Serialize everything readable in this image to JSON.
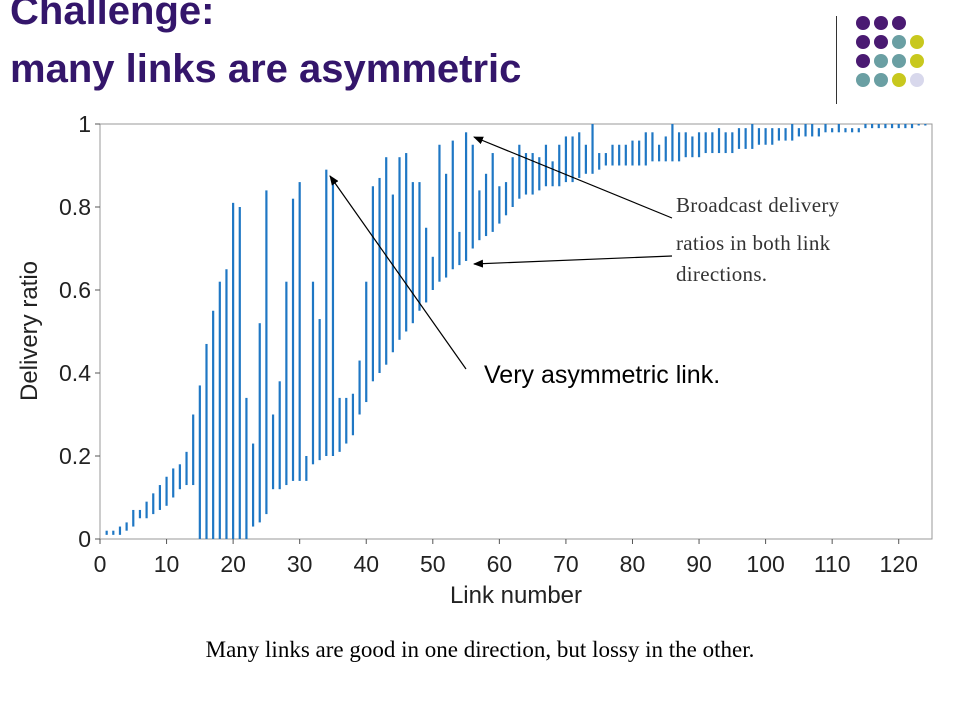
{
  "slide": {
    "title_line1": "Challenge:",
    "title_line2": "many links are asymmetric",
    "annotation": [
      "Broadcast delivery",
      "ratios in both link",
      "directions."
    ],
    "asym_label": "Very asymmetric link.",
    "caption": "Many links are good in one direction, but lossy in the other.",
    "colors": {
      "title": "#34166b",
      "bar": "#1f77c4",
      "dot_purple": "#4a1a72",
      "dot_teal": "#6a9fa3",
      "dot_yellow": "#c8c81e",
      "dot_lavender": "#d8d8ec"
    },
    "decor_dots": [
      [
        "purple",
        "purple",
        "purple",
        ""
      ],
      [
        "purple",
        "purple",
        "teal",
        "yellow"
      ],
      [
        "purple",
        "teal",
        "teal",
        "yellow"
      ],
      [
        "teal",
        "teal",
        "yellow",
        "lavender"
      ]
    ]
  },
  "chart_data": {
    "type": "range-bar",
    "title": "",
    "xlabel": "Link number",
    "ylabel": "Delivery ratio",
    "xlim": [
      0,
      125
    ],
    "ylim": [
      0,
      1
    ],
    "xticks": [
      0,
      10,
      20,
      30,
      40,
      50,
      60,
      70,
      80,
      90,
      100,
      110,
      120
    ],
    "yticks": [
      0,
      0.2,
      0.4,
      0.6,
      0.8,
      1
    ],
    "ytick_labels": [
      "0",
      "0.2",
      "0.4",
      "0.6",
      "0.8",
      "1"
    ],
    "grid": false,
    "links": [
      1,
      2,
      3,
      4,
      5,
      6,
      7,
      8,
      9,
      10,
      11,
      12,
      13,
      14,
      15,
      16,
      17,
      18,
      19,
      20,
      21,
      22,
      23,
      24,
      25,
      26,
      27,
      28,
      29,
      30,
      31,
      32,
      33,
      34,
      35,
      36,
      37,
      38,
      39,
      40,
      41,
      42,
      43,
      44,
      45,
      46,
      47,
      48,
      49,
      50,
      51,
      52,
      53,
      54,
      55,
      56,
      57,
      58,
      59,
      60,
      61,
      62,
      63,
      64,
      65,
      66,
      67,
      68,
      69,
      70,
      71,
      72,
      73,
      74,
      75,
      76,
      77,
      78,
      79,
      80,
      81,
      82,
      83,
      84,
      85,
      86,
      87,
      88,
      89,
      90,
      91,
      92,
      93,
      94,
      95,
      96,
      97,
      98,
      99,
      100,
      101,
      102,
      103,
      104,
      105,
      106,
      107,
      108,
      109,
      110,
      111,
      112,
      113,
      114,
      115,
      116,
      117,
      118,
      119,
      120,
      121,
      122,
      123,
      124
    ],
    "low": [
      0.01,
      0.01,
      0.01,
      0.02,
      0.03,
      0.05,
      0.05,
      0.06,
      0.07,
      0.08,
      0.1,
      0.12,
      0.13,
      0.13,
      0.0,
      0.0,
      0.0,
      0.0,
      0.0,
      0.0,
      0.0,
      0.0,
      0.03,
      0.04,
      0.06,
      0.12,
      0.12,
      0.13,
      0.14,
      0.14,
      0.14,
      0.18,
      0.19,
      0.2,
      0.2,
      0.21,
      0.23,
      0.25,
      0.3,
      0.33,
      0.38,
      0.4,
      0.42,
      0.45,
      0.48,
      0.5,
      0.52,
      0.55,
      0.57,
      0.6,
      0.62,
      0.63,
      0.65,
      0.66,
      0.67,
      0.7,
      0.72,
      0.73,
      0.74,
      0.76,
      0.78,
      0.8,
      0.82,
      0.83,
      0.83,
      0.84,
      0.85,
      0.85,
      0.85,
      0.86,
      0.86,
      0.87,
      0.88,
      0.88,
      0.89,
      0.9,
      0.9,
      0.9,
      0.9,
      0.9,
      0.9,
      0.9,
      0.91,
      0.91,
      0.91,
      0.91,
      0.91,
      0.92,
      0.92,
      0.92,
      0.93,
      0.93,
      0.93,
      0.93,
      0.93,
      0.94,
      0.94,
      0.94,
      0.95,
      0.95,
      0.95,
      0.96,
      0.96,
      0.96,
      0.97,
      0.97,
      0.97,
      0.97,
      0.98,
      0.98,
      0.98,
      0.98,
      0.98,
      0.98,
      0.99,
      0.99,
      0.99,
      0.99,
      0.99,
      0.99,
      0.99,
      0.99,
      1.0,
      1.0
    ],
    "high": [
      0.02,
      0.02,
      0.03,
      0.04,
      0.07,
      0.07,
      0.09,
      0.11,
      0.13,
      0.15,
      0.17,
      0.18,
      0.21,
      0.3,
      0.37,
      0.47,
      0.55,
      0.62,
      0.65,
      0.81,
      0.8,
      0.34,
      0.23,
      0.52,
      0.84,
      0.3,
      0.38,
      0.62,
      0.82,
      0.86,
      0.2,
      0.62,
      0.53,
      0.89,
      0.87,
      0.34,
      0.34,
      0.35,
      0.43,
      0.62,
      0.85,
      0.87,
      0.92,
      0.83,
      0.92,
      0.93,
      0.86,
      0.86,
      0.75,
      0.68,
      0.95,
      0.88,
      0.96,
      0.74,
      0.98,
      0.95,
      0.84,
      0.88,
      0.93,
      0.85,
      0.86,
      0.92,
      0.95,
      0.93,
      0.93,
      0.92,
      0.95,
      0.91,
      0.95,
      0.97,
      0.97,
      0.98,
      0.95,
      1.0,
      0.93,
      0.93,
      0.95,
      0.95,
      0.95,
      0.96,
      0.96,
      0.98,
      0.98,
      0.95,
      0.97,
      1.0,
      0.98,
      0.98,
      0.97,
      0.98,
      0.98,
      0.98,
      0.99,
      0.98,
      0.98,
      0.99,
      0.99,
      1.0,
      0.99,
      0.99,
      0.99,
      0.99,
      0.99,
      1.0,
      0.99,
      1.0,
      1.0,
      0.99,
      1.0,
      0.99,
      1.0,
      0.99,
      0.99,
      0.99,
      1.0,
      1.0,
      1.0,
      1.0,
      1.0,
      1.0,
      1.0,
      1.0,
      1.0,
      1.0
    ]
  }
}
